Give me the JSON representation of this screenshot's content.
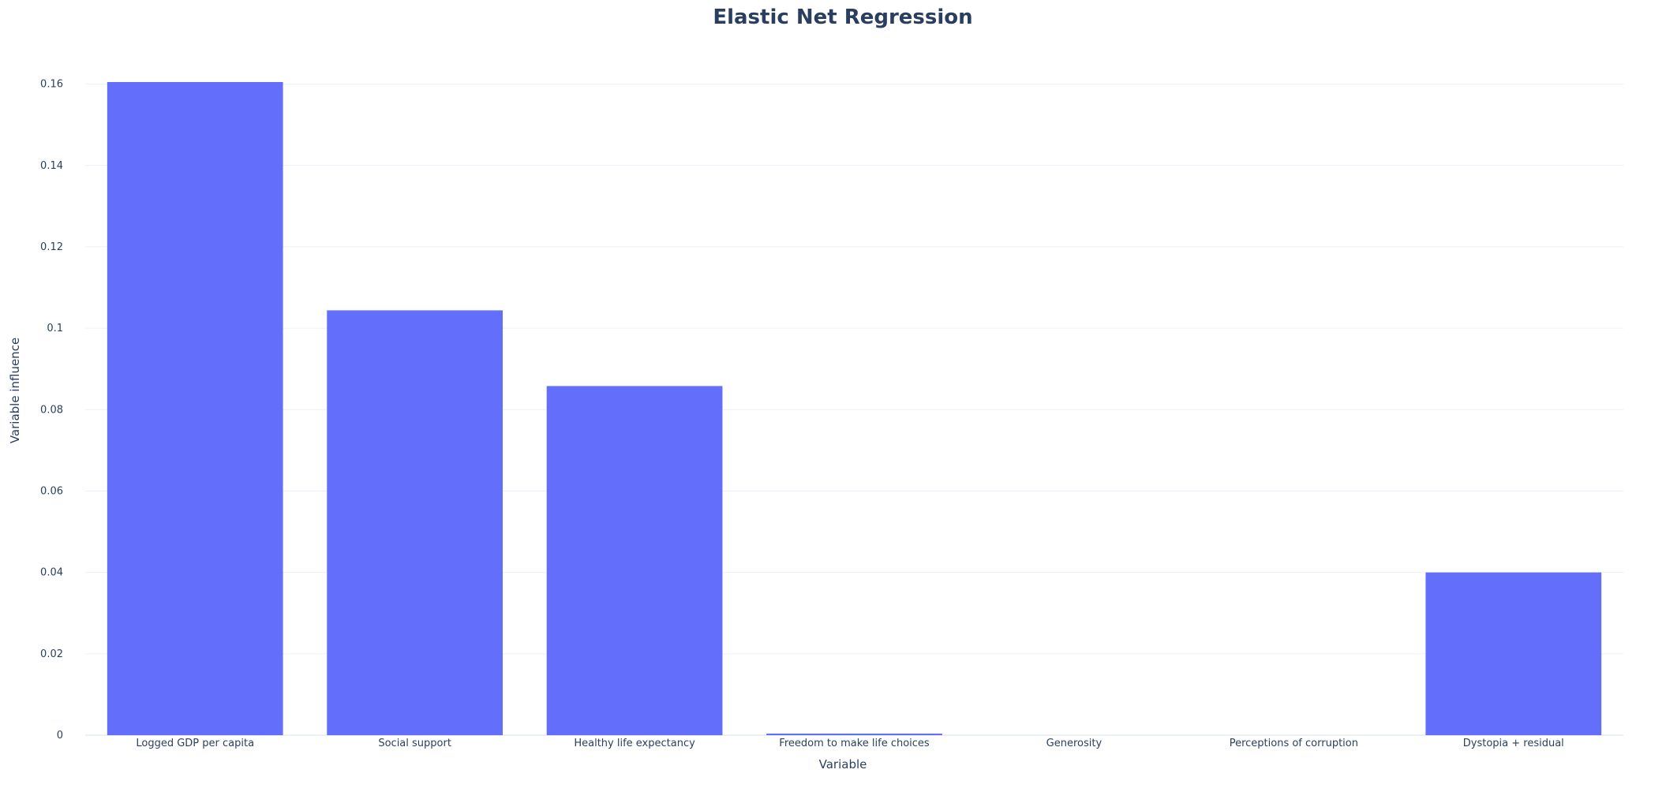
{
  "colors": {
    "bar": "#636efa",
    "title": "#2a3f5f",
    "text": "#2a3f5f",
    "grid": "#ebf0f8",
    "background": "#ffffff"
  },
  "chart_data": {
    "type": "bar",
    "title": "Elastic Net Regression",
    "xlabel": "Variable",
    "ylabel": "Variable influence",
    "ylim": [
      0,
      0.1605
    ],
    "yticks": [
      0,
      0.02,
      0.04,
      0.06,
      0.08,
      0.1,
      0.12,
      0.14,
      0.16
    ],
    "ytick_labels": [
      "0",
      "0.02",
      "0.04",
      "0.06",
      "0.08",
      "0.1",
      "0.12",
      "0.14",
      "0.16"
    ],
    "grid": true,
    "legend": "none",
    "categories": [
      "Logged GDP per capita",
      "Social support",
      "Healthy life expectancy",
      "Freedom to make life choices",
      "Generosity",
      "Perceptions of corruption",
      "Dystopia + residual"
    ],
    "values": [
      0.1605,
      0.1044,
      0.0858,
      0.0004,
      0,
      0,
      0.04
    ]
  }
}
